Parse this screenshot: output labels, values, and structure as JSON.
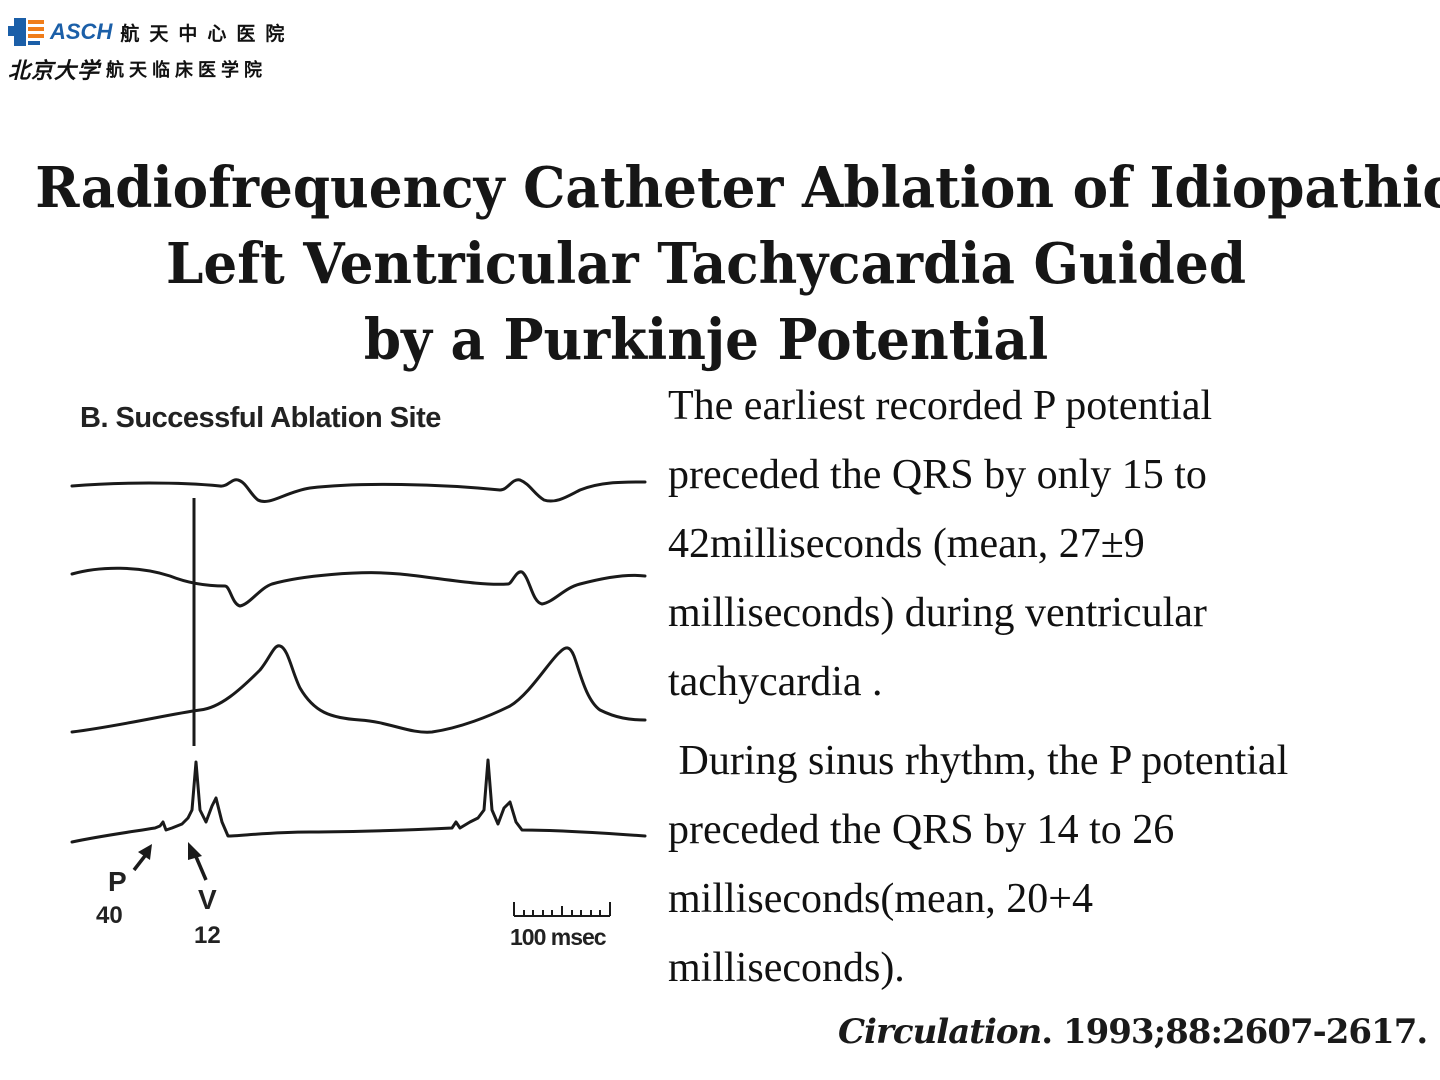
{
  "logo": {
    "asch": "ASCH",
    "cn_line1": "航天中心医院",
    "pku": "北京大学",
    "cn_line2": "航天临床医学院"
  },
  "title": {
    "line1": "Radiofrequency Catheter Ablation of Idiopathic",
    "line2": "Left Ventricular Tachycardia Guided",
    "line3": "by a Purkinje Potential"
  },
  "figure": {
    "label": "B. Successful Ablation Site",
    "p_label": "P",
    "p_value": "40",
    "v_label": "V",
    "v_value": "12",
    "scale_label": "100 msec"
  },
  "body": {
    "para1_lines": [
      "The earliest recorded P potential",
      "preceded the QRS by only 15 to",
      "42milliseconds (mean, 27±9",
      "milliseconds) during ventricular",
      "tachycardia ."
    ],
    "para2_lines": [
      " During sinus rhythm, the P potential",
      "preceded the QRS by 14 to 26",
      "milliseconds(mean, 20+4",
      "milliseconds)."
    ]
  },
  "citation": {
    "journal": "Circulation",
    "rest": ". 1993;88:2607-2617."
  },
  "colors": {
    "logo_blue": "#1b5fa8",
    "logo_orange": "#f07d1a",
    "text": "#111111"
  }
}
